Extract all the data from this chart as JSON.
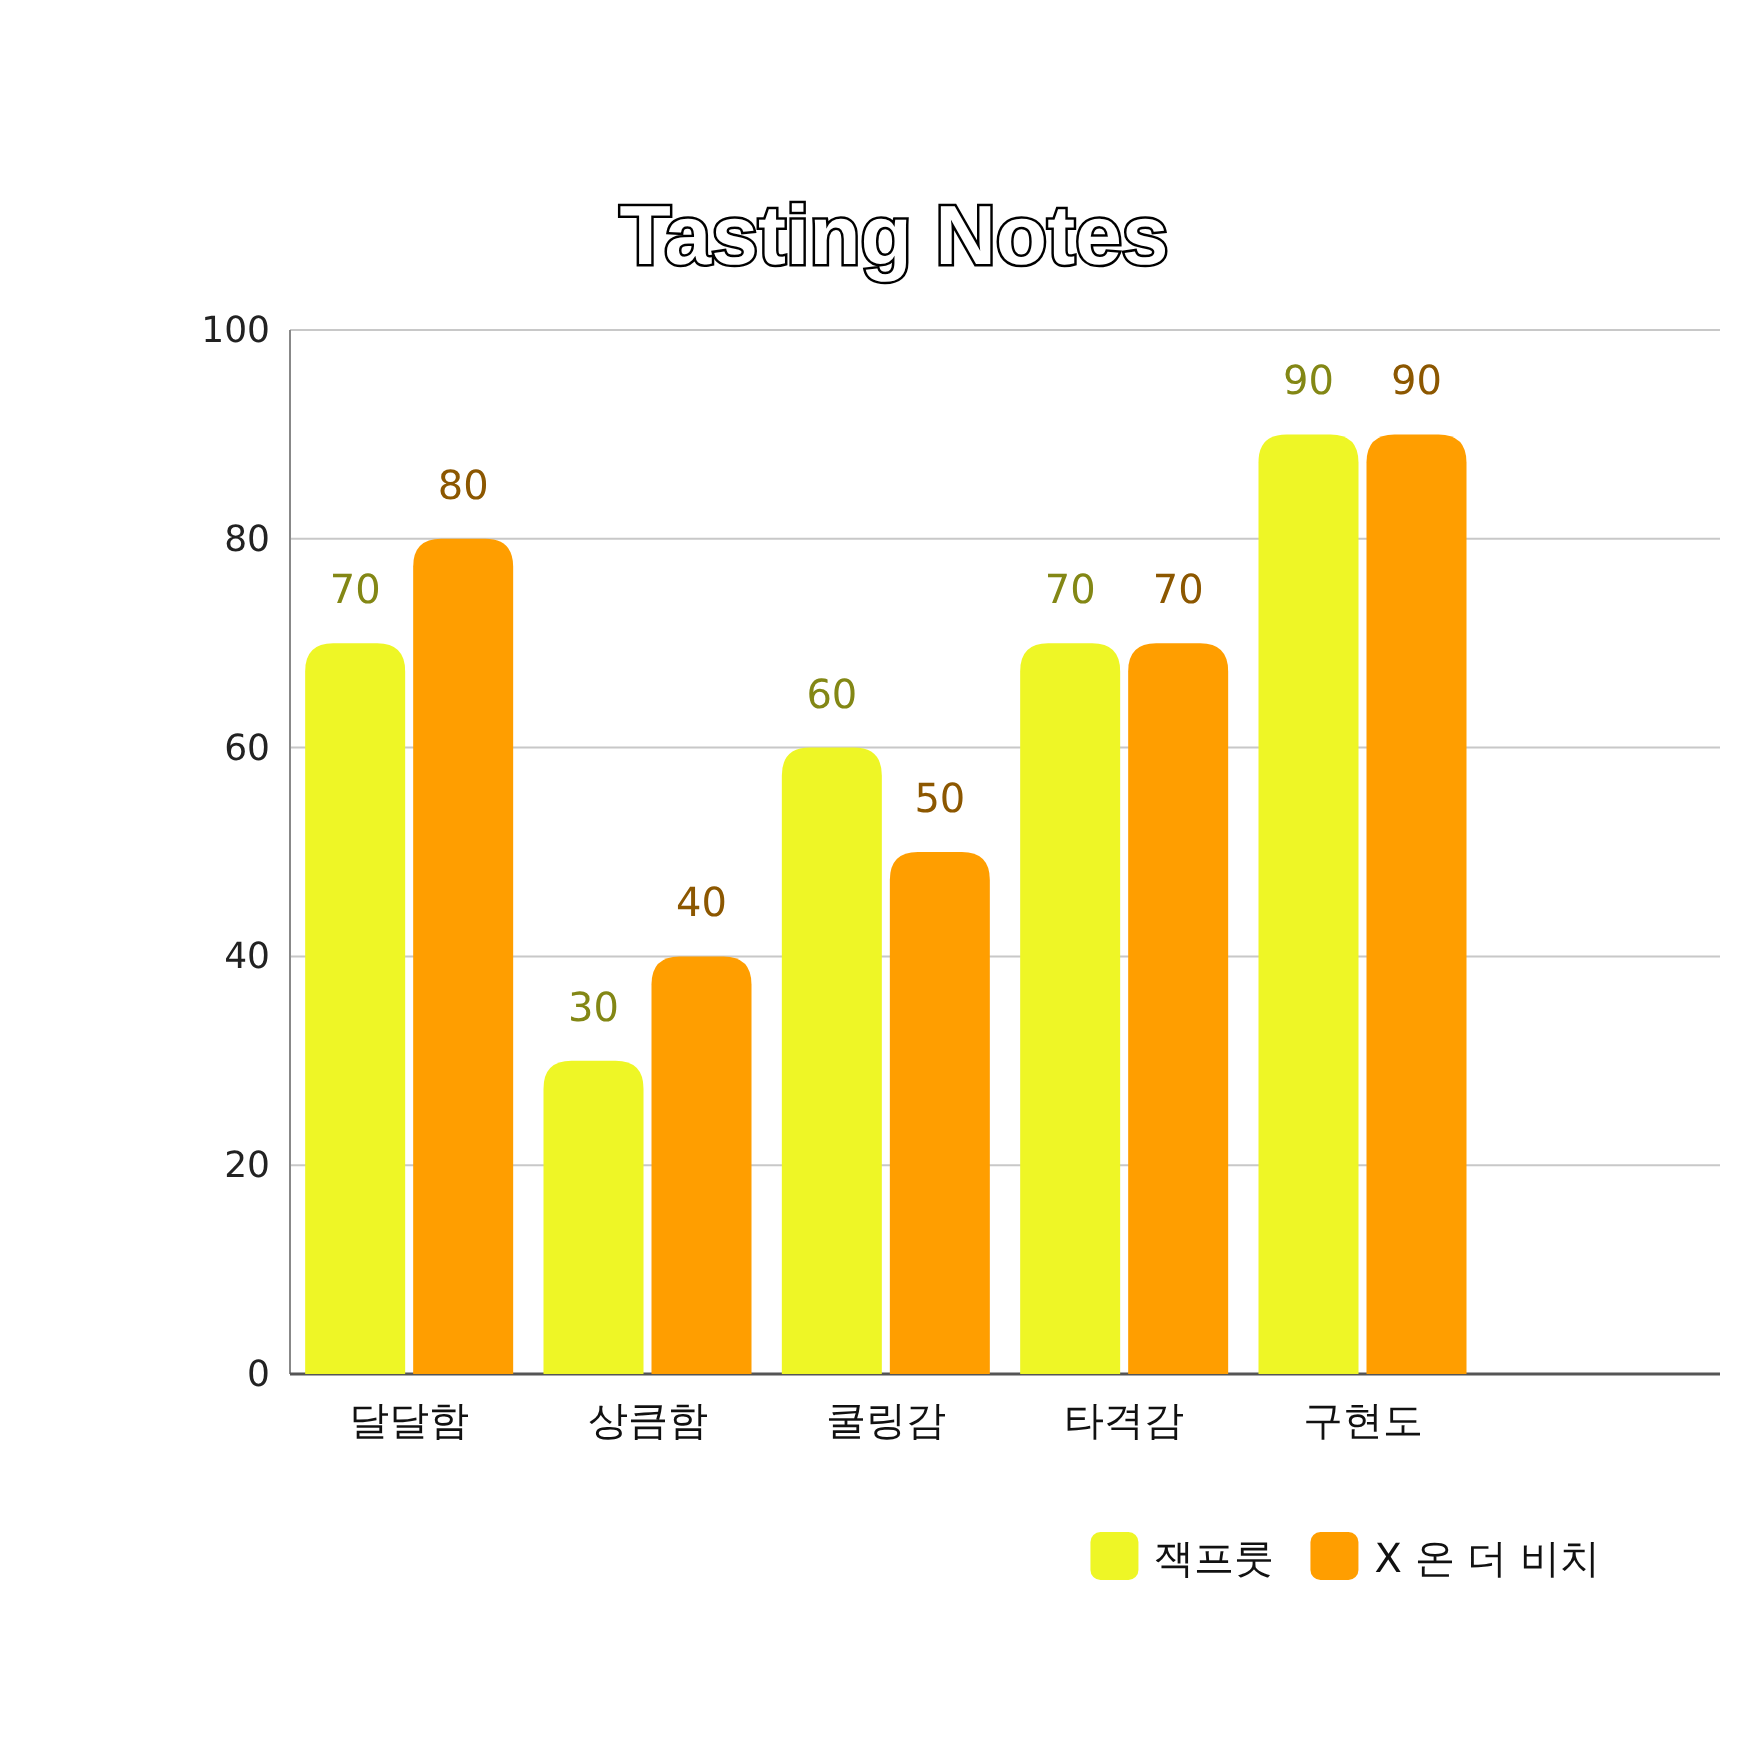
{
  "chart_data": {
    "type": "bar",
    "title": "Tasting Notes",
    "categories": [
      "달달함",
      "상큼함",
      "쿨링감",
      "타격감",
      "구현도",
      null
    ],
    "series": [
      {
        "name": "잭프룻",
        "color": "#eef626",
        "values": [
          70,
          30,
          60,
          70,
          90,
          null
        ]
      },
      {
        "name": "X 온 더 비치",
        "color": "#ff9e00",
        "values": [
          80,
          40,
          50,
          70,
          90,
          null
        ]
      }
    ],
    "ylim": [
      0,
      100
    ],
    "yticks": [
      0,
      20,
      40,
      60,
      80,
      100
    ],
    "grid": "y",
    "legend": "bottom right",
    "data_labels": true
  }
}
